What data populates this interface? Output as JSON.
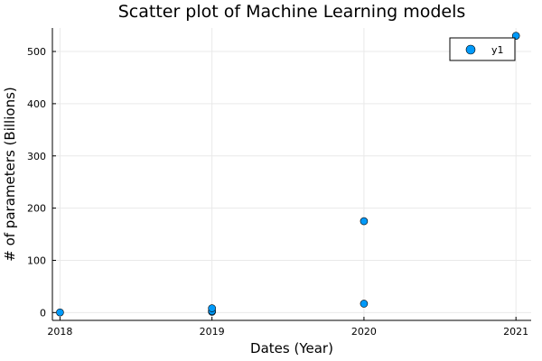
{
  "chart_data": {
    "type": "scatter",
    "title": "Scatter plot of Machine Learning models",
    "xlabel": "Dates (Year)",
    "ylabel": "# of parameters (Billions)",
    "xlim": [
      2017.95,
      2021.1
    ],
    "ylim": [
      -15,
      545
    ],
    "x_ticks": [
      2018,
      2019,
      2020,
      2021
    ],
    "y_ticks": [
      0,
      100,
      200,
      300,
      400,
      500
    ],
    "grid": true,
    "legend_position": "top-right",
    "series": [
      {
        "name": "y1",
        "color": "#009AFA",
        "x": [
          2018,
          2019,
          2019,
          2019,
          2020,
          2020,
          2021
        ],
        "y": [
          0.3,
          1.5,
          3,
          8.3,
          17,
          175,
          530
        ]
      }
    ]
  }
}
